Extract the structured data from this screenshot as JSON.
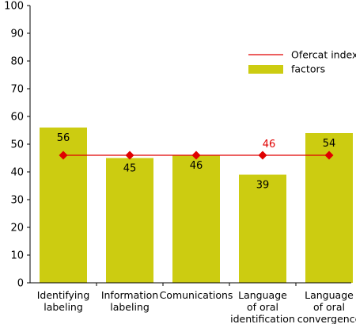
{
  "chart_data": {
    "type": "bar",
    "title": "",
    "xlabel": "",
    "ylabel": "",
    "ylim": [
      0,
      100
    ],
    "yticks": [
      0,
      10,
      20,
      30,
      40,
      50,
      60,
      70,
      80,
      90,
      100
    ],
    "grid": false,
    "legend_position": "top-right",
    "categories": [
      [
        "Identifying",
        "labeling"
      ],
      [
        "Information",
        "labeling"
      ],
      [
        "Comunications"
      ],
      [
        "Language",
        "of oral",
        "identification"
      ],
      [
        "Language",
        "of oral",
        "convergence"
      ]
    ],
    "series": [
      {
        "name": "factors",
        "type": "bar",
        "color": "#cccc11",
        "values": [
          56,
          45,
          46,
          39,
          54
        ],
        "labels": [
          "56",
          "45",
          "46",
          "39",
          "54"
        ]
      },
      {
        "name": "Ofercat index",
        "type": "line",
        "color": "#e00000",
        "marker": "diamond",
        "values": [
          46,
          46,
          46,
          46,
          46
        ],
        "point_label": {
          "index": 3,
          "text": "46"
        }
      }
    ]
  }
}
